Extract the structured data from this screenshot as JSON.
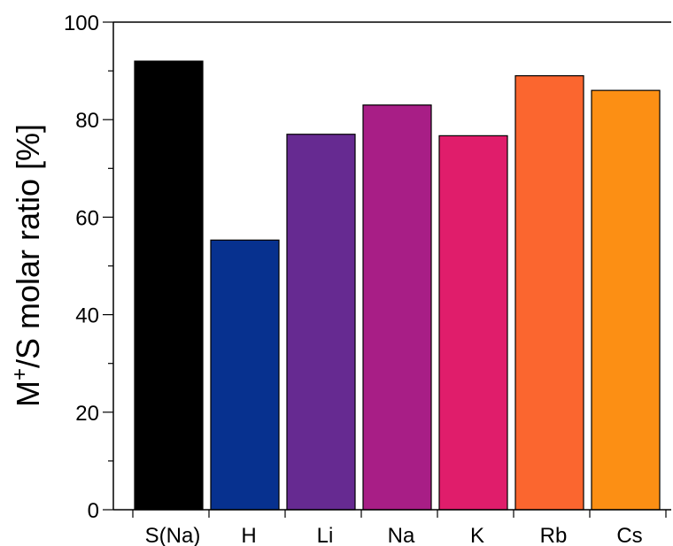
{
  "chart_data": {
    "type": "bar",
    "title": "",
    "xlabel": "",
    "ylabel": {
      "main": "M",
      "sup": "+",
      "rest": "/S molar ratio [%]"
    },
    "categories": [
      "S(Na)",
      "H",
      "Li",
      "Na",
      "K",
      "Rb",
      "Cs"
    ],
    "values": [
      92,
      55.3,
      77,
      83,
      76.7,
      89,
      86
    ],
    "colors": [
      "#000000",
      "#07318f",
      "#662a91",
      "#a81e86",
      "#e01d6b",
      "#fb662f",
      "#fc8f14"
    ],
    "ylim": [
      0,
      100
    ],
    "yticks": [
      0,
      20,
      40,
      60,
      80,
      100
    ],
    "grid": false,
    "legend": "none"
  }
}
